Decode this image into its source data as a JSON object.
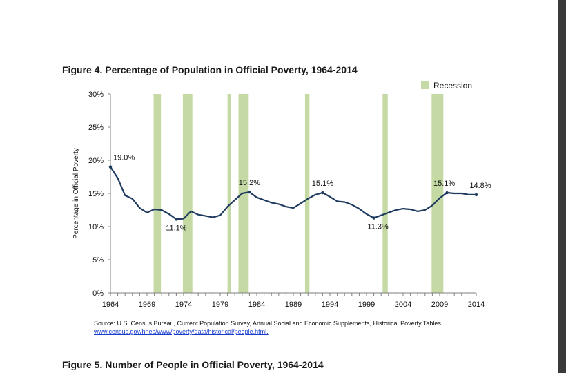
{
  "figure4": {
    "title": "Figure 4. Percentage of Population in Official Poverty, 1964-2014"
  },
  "figure5": {
    "title": "Figure 5. Number of People in Official Poverty, 1964-2014"
  },
  "source": {
    "text": "Source:  U.S. Census Bureau, Current Population Survey, Annual Social and Economic Supplements, Historical Poverty Tables.",
    "link": "www.census.gov/hhes/www/poverty/data/historical/people.html."
  },
  "colors": {
    "line": "#1f3a5f",
    "recession": "#c4d9a3",
    "axis": "#7f7f7f"
  },
  "chart_data": {
    "type": "line",
    "ylabel": "Percentage in Official Poverty",
    "xlabel": "",
    "xlim": [
      1964,
      2014
    ],
    "ylim": [
      0,
      30
    ],
    "yticks": [
      0,
      5,
      10,
      15,
      20,
      25,
      30
    ],
    "ytick_labels": [
      "0%",
      "5%",
      "10%",
      "15%",
      "20%",
      "25%",
      "30%"
    ],
    "xticks": [
      1964,
      1969,
      1974,
      1979,
      1984,
      1989,
      1994,
      1999,
      2004,
      2009,
      2014
    ],
    "xtick_labels": [
      "1964",
      "1969",
      "1974",
      "1979",
      "1984",
      "1989",
      "1994",
      "1999",
      "2004",
      "2009",
      "2014"
    ],
    "legend": {
      "label": "Recession",
      "position": "top-right"
    },
    "recessions": [
      [
        1969.9,
        1970.9
      ],
      [
        1973.9,
        1975.2
      ],
      [
        1980.0,
        1980.5
      ],
      [
        1981.5,
        1982.9
      ],
      [
        1990.6,
        1991.2
      ],
      [
        2001.2,
        2001.9
      ],
      [
        2007.9,
        2009.5
      ]
    ],
    "series": [
      {
        "x": [
          1964,
          1965,
          1966,
          1967,
          1968,
          1969,
          1970,
          1971,
          1972,
          1973,
          1974,
          1975,
          1976,
          1977,
          1978,
          1979,
          1980,
          1981,
          1982,
          1983,
          1984,
          1985,
          1986,
          1987,
          1988,
          1989,
          1990,
          1991,
          1992,
          1993,
          1994,
          1995,
          1996,
          1997,
          1998,
          1999,
          2000,
          2001,
          2002,
          2003,
          2004,
          2005,
          2006,
          2007,
          2008,
          2009,
          2010,
          2011,
          2012,
          2013,
          2014
        ],
        "values": [
          19.0,
          17.3,
          14.7,
          14.2,
          12.8,
          12.1,
          12.6,
          12.5,
          11.9,
          11.1,
          11.2,
          12.3,
          11.8,
          11.6,
          11.4,
          11.7,
          13.0,
          14.0,
          15.0,
          15.2,
          14.4,
          14.0,
          13.6,
          13.4,
          13.0,
          12.8,
          13.5,
          14.2,
          14.8,
          15.1,
          14.5,
          13.8,
          13.7,
          13.3,
          12.7,
          11.9,
          11.3,
          11.7,
          12.1,
          12.5,
          12.7,
          12.6,
          12.3,
          12.5,
          13.2,
          14.3,
          15.1,
          15.0,
          15.0,
          14.8,
          14.8
        ]
      }
    ],
    "annotations": [
      {
        "x": 1964,
        "y": 19.0,
        "label": "19.0%"
      },
      {
        "x": 1973,
        "y": 11.1,
        "label": "11.1%"
      },
      {
        "x": 1983,
        "y": 15.2,
        "label": "15.2%"
      },
      {
        "x": 1993,
        "y": 15.1,
        "label": "15.1%"
      },
      {
        "x": 2000,
        "y": 11.3,
        "label": "11.3%"
      },
      {
        "x": 2010,
        "y": 15.1,
        "label": "15.1%"
      },
      {
        "x": 2014,
        "y": 14.8,
        "label": "14.8%"
      }
    ]
  }
}
